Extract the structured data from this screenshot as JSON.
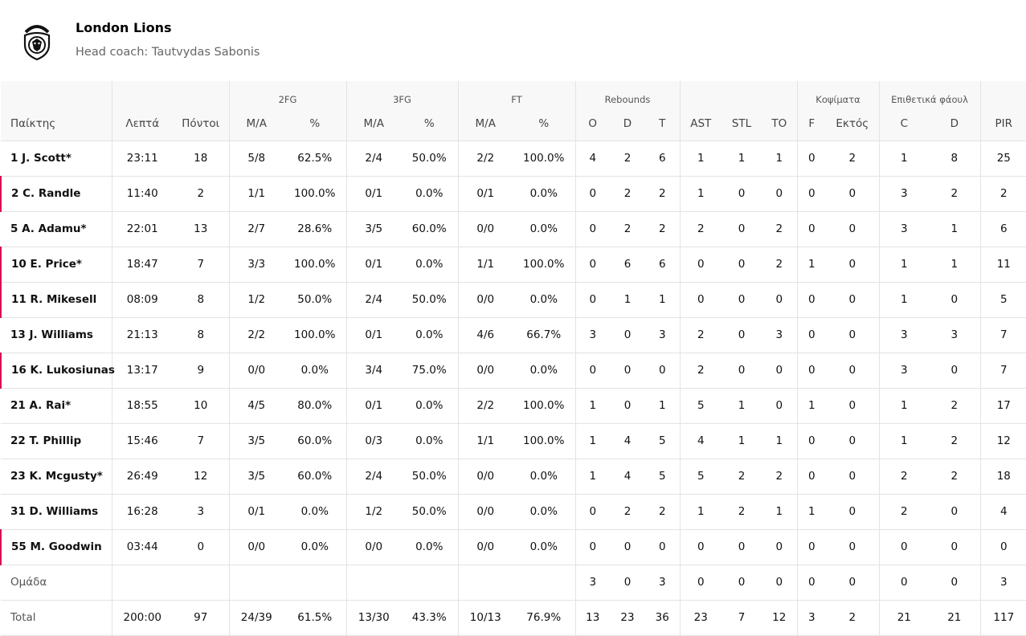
{
  "team": {
    "name": "London Lions",
    "coach": "Head coach: Tautvydas Sabonis",
    "logo_text": "LONDON LIONS"
  },
  "groups": {
    "fg2": "2FG",
    "fg3": "3FG",
    "ft": "FT",
    "rebounds": "Rebounds",
    "blocks": "Κοψίματα",
    "fouls": "Επιθετικά φάουλ"
  },
  "columns": {
    "player": "Παίκτης",
    "minutes": "Λεπτά",
    "points": "Πόντοι",
    "fg2_ma": "M/A",
    "fg2_pct": "%",
    "fg3_ma": "M/A",
    "fg3_pct": "%",
    "ft_ma": "M/A",
    "ft_pct": "%",
    "reb_o": "O",
    "reb_d": "D",
    "reb_t": "T",
    "ast": "AST",
    "stl": "STL",
    "to": "TO",
    "blk_f": "F",
    "blk_ag": "Εκτός",
    "foul_c": "C",
    "foul_d": "D",
    "pir": "PIR"
  },
  "players": [
    {
      "name": "1 J. Scott*",
      "bench": false,
      "stats": [
        "23:11",
        "18",
        "5/8",
        "62.5%",
        "2/4",
        "50.0%",
        "2/2",
        "100.0%",
        "4",
        "2",
        "6",
        "1",
        "1",
        "1",
        "0",
        "2",
        "1",
        "8",
        "25"
      ]
    },
    {
      "name": "2 C. Randle",
      "bench": true,
      "stats": [
        "11:40",
        "2",
        "1/1",
        "100.0%",
        "0/1",
        "0.0%",
        "0/1",
        "0.0%",
        "0",
        "2",
        "2",
        "1",
        "0",
        "0",
        "0",
        "0",
        "3",
        "2",
        "2"
      ]
    },
    {
      "name": "5 A. Adamu*",
      "bench": false,
      "stats": [
        "22:01",
        "13",
        "2/7",
        "28.6%",
        "3/5",
        "60.0%",
        "0/0",
        "0.0%",
        "0",
        "2",
        "2",
        "2",
        "0",
        "2",
        "0",
        "0",
        "3",
        "1",
        "6"
      ]
    },
    {
      "name": "10 E. Price*",
      "bench": true,
      "stats": [
        "18:47",
        "7",
        "3/3",
        "100.0%",
        "0/1",
        "0.0%",
        "1/1",
        "100.0%",
        "0",
        "6",
        "6",
        "0",
        "0",
        "2",
        "1",
        "0",
        "1",
        "1",
        "11"
      ]
    },
    {
      "name": "11 R. Mikesell",
      "bench": true,
      "stats": [
        "08:09",
        "8",
        "1/2",
        "50.0%",
        "2/4",
        "50.0%",
        "0/0",
        "0.0%",
        "0",
        "1",
        "1",
        "0",
        "0",
        "0",
        "0",
        "0",
        "1",
        "0",
        "5"
      ]
    },
    {
      "name": "13 J. Williams",
      "bench": false,
      "stats": [
        "21:13",
        "8",
        "2/2",
        "100.0%",
        "0/1",
        "0.0%",
        "4/6",
        "66.7%",
        "3",
        "0",
        "3",
        "2",
        "0",
        "3",
        "0",
        "0",
        "3",
        "3",
        "7"
      ]
    },
    {
      "name": "16 K. Lukosiunas",
      "bench": true,
      "stats": [
        "13:17",
        "9",
        "0/0",
        "0.0%",
        "3/4",
        "75.0%",
        "0/0",
        "0.0%",
        "0",
        "0",
        "0",
        "2",
        "0",
        "0",
        "0",
        "0",
        "3",
        "0",
        "7"
      ]
    },
    {
      "name": "21 A. Rai*",
      "bench": false,
      "stats": [
        "18:55",
        "10",
        "4/5",
        "80.0%",
        "0/1",
        "0.0%",
        "2/2",
        "100.0%",
        "1",
        "0",
        "1",
        "5",
        "1",
        "0",
        "1",
        "0",
        "1",
        "2",
        "17"
      ]
    },
    {
      "name": "22 T. Phillip",
      "bench": false,
      "stats": [
        "15:46",
        "7",
        "3/5",
        "60.0%",
        "0/3",
        "0.0%",
        "1/1",
        "100.0%",
        "1",
        "4",
        "5",
        "4",
        "1",
        "1",
        "0",
        "0",
        "1",
        "2",
        "12"
      ]
    },
    {
      "name": "23 K. Mcgusty*",
      "bench": false,
      "stats": [
        "26:49",
        "12",
        "3/5",
        "60.0%",
        "2/4",
        "50.0%",
        "0/0",
        "0.0%",
        "1",
        "4",
        "5",
        "5",
        "2",
        "2",
        "0",
        "0",
        "2",
        "2",
        "18"
      ]
    },
    {
      "name": "31 D. Williams",
      "bench": false,
      "stats": [
        "16:28",
        "3",
        "0/1",
        "0.0%",
        "1/2",
        "50.0%",
        "0/0",
        "0.0%",
        "0",
        "2",
        "2",
        "1",
        "2",
        "1",
        "1",
        "0",
        "2",
        "0",
        "4"
      ]
    },
    {
      "name": "55 M. Goodwin",
      "bench": true,
      "stats": [
        "03:44",
        "0",
        "0/0",
        "0.0%",
        "0/0",
        "0.0%",
        "0/0",
        "0.0%",
        "0",
        "0",
        "0",
        "0",
        "0",
        "0",
        "0",
        "0",
        "0",
        "0",
        "0"
      ]
    }
  ],
  "team_row": {
    "label": "Ομάδα",
    "stats": [
      "",
      "",
      "",
      "",
      "",
      "",
      "",
      "",
      "3",
      "0",
      "3",
      "0",
      "0",
      "0",
      "0",
      "0",
      "0",
      "0",
      "3"
    ]
  },
  "total_row": {
    "label": "Total",
    "stats": [
      "200:00",
      "97",
      "24/39",
      "61.5%",
      "13/30",
      "43.3%",
      "10/13",
      "76.9%",
      "13",
      "23",
      "36",
      "23",
      "7",
      "12",
      "3",
      "2",
      "21",
      "21",
      "117"
    ]
  }
}
